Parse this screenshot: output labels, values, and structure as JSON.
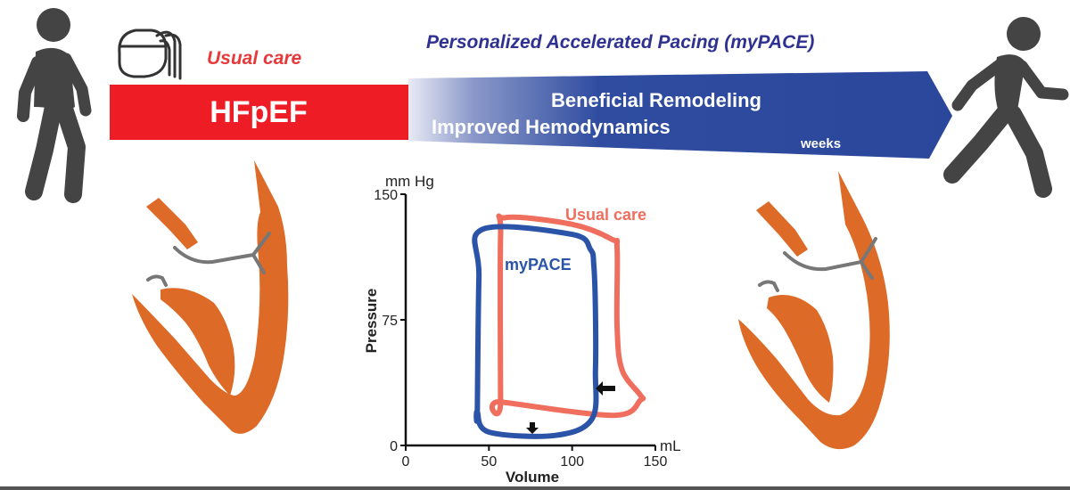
{
  "usual_care_label": "Usual care",
  "mypace_title": "Personalized Accelerated Pacing (myPACE)",
  "hfpef_label": "HFpEF",
  "remodeling_label": "Beneficial Remodeling",
  "hemodynamics_label": "Improved Hemodynamics",
  "weeks_label": "weeks",
  "colors": {
    "red_bar": "#ee1c25",
    "blue_arrow": "#2b479c",
    "title_blue": "#2e3192",
    "usual_red": "#e8393a",
    "heart_orange": "#dd6a26",
    "figure_gray": "#444444",
    "loop_usual": "#ef6e5e",
    "loop_mypace": "#2b54a8"
  },
  "pv_chart": {
    "y_unit": "mm Hg",
    "x_unit": "mL",
    "ylabel": "Pressure",
    "xlabel": "Volume",
    "yticks": [
      "0",
      "75",
      "150"
    ],
    "xticks": [
      "0",
      "50",
      "100",
      "150"
    ],
    "usual_care_label": "Usual care",
    "mypace_label": "myPACE"
  },
  "chart_data": {
    "type": "line",
    "title": "",
    "xlabel": "Volume",
    "ylabel": "Pressure",
    "xlim": [
      0,
      150
    ],
    "ylim": [
      0,
      150
    ],
    "series": [
      {
        "name": "Usual care",
        "x": [
          57,
          57,
          60,
          100,
          124,
          127,
          127,
          130,
          141,
          141,
          125,
          57
        ],
        "y": [
          26,
          125,
          136,
          132,
          123,
          117,
          70,
          45,
          30,
          27,
          18,
          26
        ]
      },
      {
        "name": "myPACE",
        "x": [
          43,
          44,
          46,
          100,
          111,
          113,
          114,
          114,
          112,
          90,
          50,
          43
        ],
        "y": [
          20,
          100,
          129,
          126,
          117,
          108,
          80,
          45,
          16,
          6,
          8,
          20
        ]
      }
    ]
  }
}
